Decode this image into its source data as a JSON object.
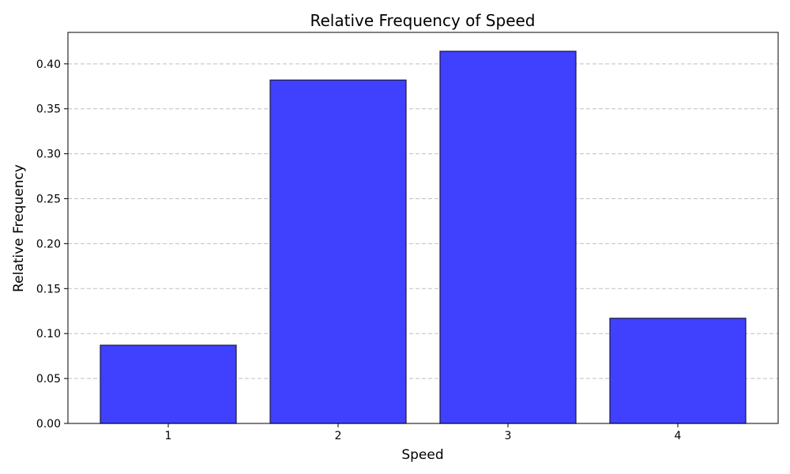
{
  "chart_data": {
    "type": "bar",
    "title": "Relative Frequency of Speed",
    "xlabel": "Speed",
    "ylabel": "Relative Frequency",
    "categories": [
      "1",
      "2",
      "3",
      "4"
    ],
    "values": [
      0.087,
      0.382,
      0.414,
      0.117
    ],
    "ylim": [
      0,
      0.435
    ],
    "yticks": [
      "0.00",
      "0.05",
      "0.10",
      "0.15",
      "0.20",
      "0.25",
      "0.30",
      "0.35",
      "0.40"
    ],
    "grid": "horizontal-dashed",
    "colors": {
      "bar_fill": "#4040ff",
      "bar_edge": "#1a1a3a",
      "grid": "#c0c0c0"
    }
  }
}
